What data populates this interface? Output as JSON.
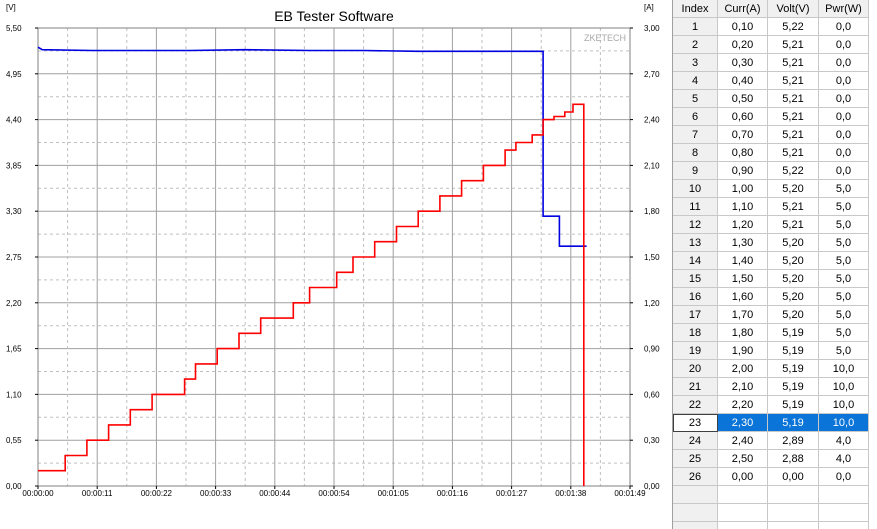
{
  "app": {
    "title": "EB Tester Software"
  },
  "chart_data": {
    "type": "line",
    "title": "EB Tester Software",
    "watermark": "ZKETECH",
    "left_axis": {
      "unit": "[V]",
      "min": 0,
      "max": 5.5,
      "ticks": [
        "5,50",
        "4,95",
        "4,40",
        "3,85",
        "3,30",
        "2,75",
        "2,20",
        "1,65",
        "1,10",
        "0,55",
        "0,00"
      ]
    },
    "right_axis": {
      "unit": "[A]",
      "min": 0,
      "max": 3.0,
      "ticks": [
        "3,00",
        "2,70",
        "2,40",
        "2,10",
        "1,80",
        "1,50",
        "1,20",
        "0,90",
        "0,60",
        "0,30",
        "0,00"
      ]
    },
    "x_axis": {
      "min_s": 0,
      "max_s": 109,
      "ticks": [
        "00:00:00",
        "00:00:11",
        "00:00:22",
        "00:00:33",
        "00:00:44",
        "00:00:54",
        "00:01:05",
        "00:01:16",
        "00:01:27",
        "00:01:38",
        "00:01:49"
      ]
    },
    "grid": true,
    "series": [
      {
        "color": "#0000e0",
        "axis": "left",
        "x": [
          0,
          0.8,
          10,
          20,
          28,
          38,
          50,
          60,
          70,
          80,
          90,
          93,
          93,
          96,
          96,
          101
        ],
        "y": [
          5.27,
          5.24,
          5.23,
          5.23,
          5.23,
          5.24,
          5.23,
          5.23,
          5.22,
          5.22,
          5.22,
          5.22,
          3.24,
          3.24,
          2.88,
          2.88
        ]
      },
      {
        "color": "#ff0000",
        "axis": "right",
        "x": [
          0,
          5,
          5,
          9,
          9,
          13,
          13,
          17,
          17,
          21,
          21,
          27,
          27,
          29,
          29,
          33,
          33,
          37,
          37,
          41,
          41,
          47,
          47,
          50,
          50,
          55,
          55,
          58,
          58,
          62,
          62,
          66,
          66,
          70,
          70,
          74,
          74,
          78,
          78,
          82,
          82,
          86,
          86,
          88,
          88,
          91,
          91,
          93,
          93,
          95,
          95,
          97,
          97,
          98.5,
          98.5,
          100.5,
          100.5
        ],
        "y": [
          0.1,
          0.1,
          0.2,
          0.2,
          0.3,
          0.3,
          0.4,
          0.4,
          0.5,
          0.5,
          0.6,
          0.6,
          0.7,
          0.7,
          0.8,
          0.8,
          0.9,
          0.9,
          1.0,
          1.0,
          1.1,
          1.1,
          1.2,
          1.2,
          1.3,
          1.3,
          1.4,
          1.4,
          1.5,
          1.5,
          1.6,
          1.6,
          1.7,
          1.7,
          1.8,
          1.8,
          1.9,
          1.9,
          2.0,
          2.0,
          2.1,
          2.1,
          2.2,
          2.2,
          2.25,
          2.25,
          2.3,
          2.3,
          2.4,
          2.4,
          2.42,
          2.42,
          2.45,
          2.45,
          2.5,
          2.5,
          0.0
        ]
      }
    ]
  },
  "table": {
    "headers": [
      "Index",
      "Curr(A)",
      "Volt(V)",
      "Pwr(W)"
    ],
    "selected_index": "23",
    "rows": [
      [
        "1",
        "0,10",
        "5,22",
        "0,0"
      ],
      [
        "2",
        "0,20",
        "5,21",
        "0,0"
      ],
      [
        "3",
        "0,30",
        "5,21",
        "0,0"
      ],
      [
        "4",
        "0,40",
        "5,21",
        "0,0"
      ],
      [
        "5",
        "0,50",
        "5,21",
        "0,0"
      ],
      [
        "6",
        "0,60",
        "5,21",
        "0,0"
      ],
      [
        "7",
        "0,70",
        "5,21",
        "0,0"
      ],
      [
        "8",
        "0,80",
        "5,21",
        "0,0"
      ],
      [
        "9",
        "0,90",
        "5,22",
        "0,0"
      ],
      [
        "10",
        "1,00",
        "5,20",
        "5,0"
      ],
      [
        "11",
        "1,10",
        "5,21",
        "5,0"
      ],
      [
        "12",
        "1,20",
        "5,21",
        "5,0"
      ],
      [
        "13",
        "1,30",
        "5,20",
        "5,0"
      ],
      [
        "14",
        "1,40",
        "5,20",
        "5,0"
      ],
      [
        "15",
        "1,50",
        "5,20",
        "5,0"
      ],
      [
        "16",
        "1,60",
        "5,20",
        "5,0"
      ],
      [
        "17",
        "1,70",
        "5,20",
        "5,0"
      ],
      [
        "18",
        "1,80",
        "5,19",
        "5,0"
      ],
      [
        "19",
        "1,90",
        "5,19",
        "5,0"
      ],
      [
        "20",
        "2,00",
        "5,19",
        "10,0"
      ],
      [
        "21",
        "2,10",
        "5,19",
        "10,0"
      ],
      [
        "22",
        "2,20",
        "5,19",
        "10,0"
      ],
      [
        "23",
        "2,30",
        "5,19",
        "10,0"
      ],
      [
        "24",
        "2,40",
        "2,89",
        "4,0"
      ],
      [
        "25",
        "2,50",
        "2,88",
        "4,0"
      ],
      [
        "26",
        "0,00",
        "0,00",
        "0,0"
      ]
    ]
  }
}
